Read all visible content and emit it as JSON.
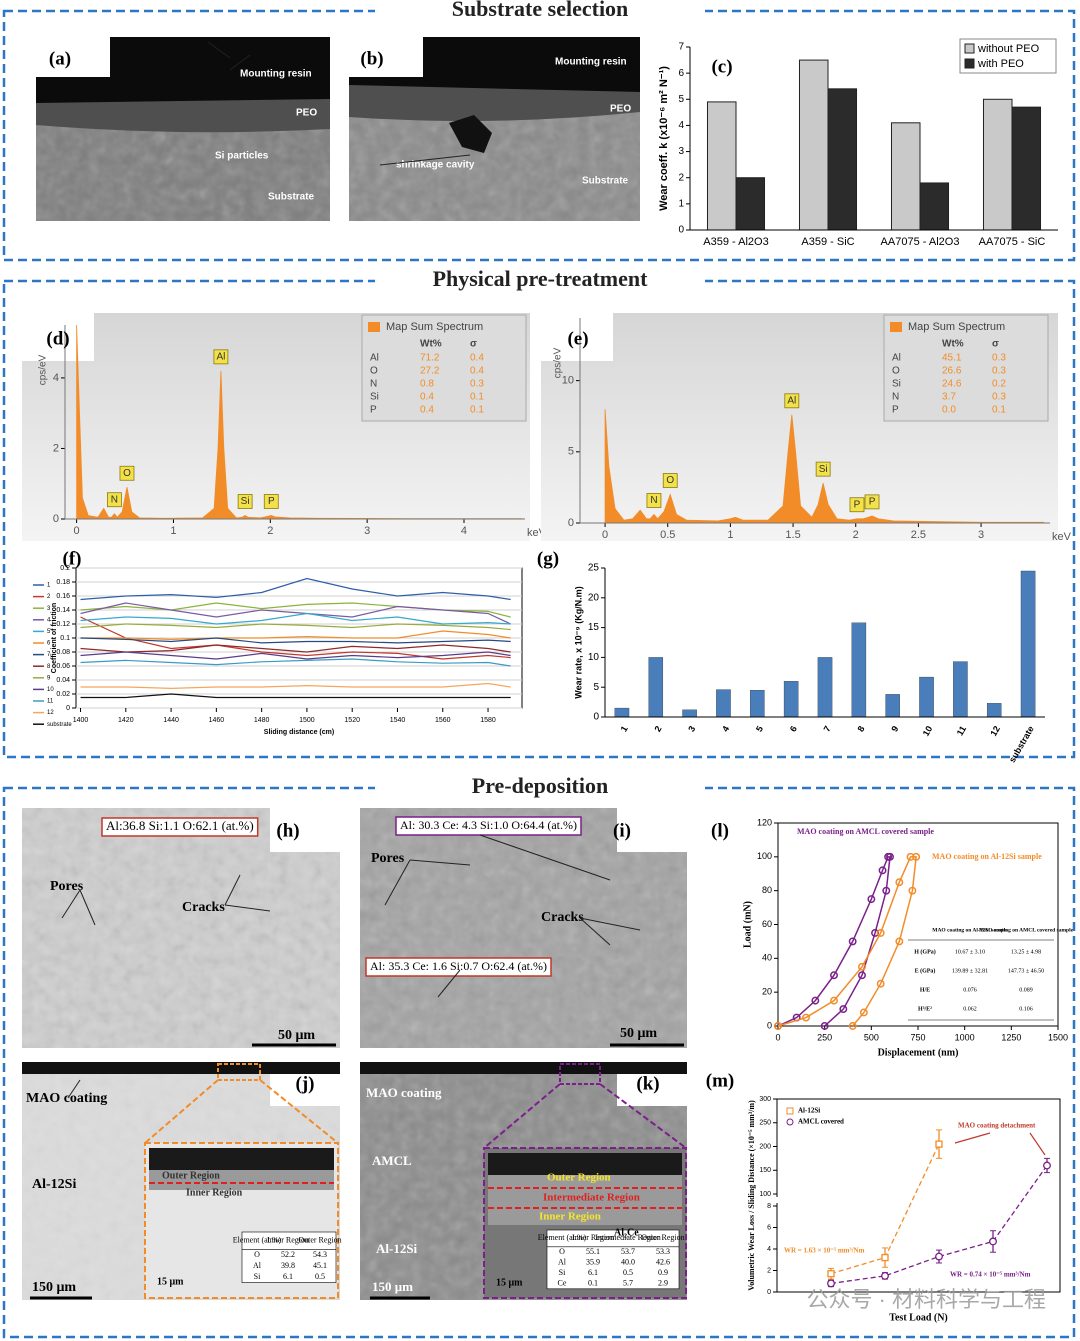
{
  "sections": [
    {
      "title": "Substrate selection"
    },
    {
      "title": "Physical pre-treatment"
    },
    {
      "title": "Pre-deposition"
    }
  ],
  "images": [
    {
      "label": "(a)",
      "annotations": [
        "Mounting resin",
        "PEO",
        "Si particles",
        "Substrate"
      ]
    },
    {
      "label": "(b)",
      "annotations": [
        "Mounting resin",
        "PEO",
        "shrinkage cavity",
        "Substrate"
      ]
    },
    {
      "label": "(h)",
      "annotations": [
        "Al:36.8 Si:1.1 O:62.1 (at.%)",
        "Pores",
        "Cracks",
        "50 μm"
      ]
    },
    {
      "label": "(i)",
      "annotations": [
        "Al: 30.3 Ce: 4.3 Si:1.0 O:64.4 (at.%)",
        "Pores",
        "Cracks",
        "Al: 35.3 Ce: 1.6 Si:0.7 O:62.4 (at.%)",
        "50 μm"
      ]
    },
    {
      "label": "(j)",
      "annotations": [
        "MAO coating",
        "Al-12Si",
        "150 μm",
        "Outer Region",
        "Inner Region",
        "15 μm"
      ],
      "table": {
        "header": [
          "Element (at.%)",
          "Inner Region",
          "Outer Region"
        ],
        "rows": [
          [
            "O",
            "52.2",
            "54.3"
          ],
          [
            "Al",
            "39.8",
            "45.1"
          ],
          [
            "Si",
            "6.1",
            "0.5"
          ]
        ]
      }
    },
    {
      "label": "(k)",
      "annotations": [
        "MAO coating",
        "AMCL",
        "Al-12Si",
        "150 μm",
        "Outer Region",
        "Intermediate Region",
        "Inner Region",
        "Al₂Ce",
        "15 μm"
      ],
      "table": {
        "header": [
          "Element (at.%)",
          "Inner Region",
          "Intermediate Region",
          "Outer Region"
        ],
        "rows": [
          [
            "O",
            "55.1",
            "53.7",
            "53.3"
          ],
          [
            "Al",
            "35.9",
            "40.0",
            "42.6"
          ],
          [
            "Si",
            "6.1",
            "0.5",
            "0.9"
          ],
          [
            "Ce",
            "0.1",
            "5.7",
            "2.9"
          ]
        ]
      }
    }
  ],
  "chart_data": [
    {
      "type": "bar",
      "label": "(c)",
      "categories": [
        "A359 - Al2O3",
        "A359 - SiC",
        "AA7075 - Al2O3",
        "AA7075 - SiC"
      ],
      "series": [
        {
          "name": "without PEO",
          "color": "#c9c9c9",
          "values": [
            4.9,
            6.5,
            4.1,
            5.0
          ]
        },
        {
          "name": "with PEO",
          "color": "#2b2b2b",
          "values": [
            2.0,
            5.4,
            1.8,
            4.7
          ]
        }
      ],
      "y_label": "Wear coeff. k (x10⁻⁶ m² N⁻¹)",
      "ylim": [
        0,
        7
      ],
      "yticks": [
        0,
        1,
        2,
        3,
        4,
        5,
        6,
        7
      ],
      "legend": "upper right"
    },
    {
      "type": "area",
      "label": "(d)",
      "color": "#f28c28",
      "x": [
        0,
        0.03,
        0.06,
        0.12,
        0.22,
        0.28,
        0.33,
        0.36,
        0.39,
        0.42,
        0.47,
        0.52,
        0.57,
        0.65,
        0.9,
        1.3,
        1.42,
        1.46,
        1.49,
        1.52,
        1.56,
        1.65,
        1.71,
        1.74,
        1.77,
        1.9,
        1.98,
        2.01,
        2.05,
        2.2,
        2.5,
        3.5,
        4.6
      ],
      "values": [
        5.5,
        3,
        0.6,
        0.1,
        0.05,
        0.3,
        0.05,
        0.05,
        0.15,
        0.05,
        0.2,
        0.9,
        0.2,
        0.03,
        0.02,
        0.03,
        0.3,
        2,
        4.2,
        2,
        0.3,
        0.03,
        0.05,
        0.1,
        0.05,
        0.03,
        0.08,
        0.1,
        0.06,
        0.03,
        0.02,
        0.01,
        0.01
      ],
      "xlim": [
        -0.12,
        4.63
      ],
      "ylim": [
        0,
        5.5
      ],
      "xticks": [
        0,
        1,
        2,
        3,
        4
      ],
      "yticks": [
        0,
        2,
        4
      ],
      "x_label": "keV",
      "y_label": "cps/eV",
      "peaks": [
        {
          "label": "N",
          "x": 0.39
        },
        {
          "label": "O",
          "x": 0.52
        },
        {
          "label": "Al",
          "x": 1.49
        },
        {
          "label": "Si",
          "x": 1.74
        },
        {
          "label": "P",
          "x": 2.01
        }
      ],
      "legend": {
        "title": "Map Sum Spectrum",
        "columns": [
          "Wt%",
          "σ"
        ],
        "rows": [
          [
            "Al",
            "71.2",
            "0.4"
          ],
          [
            "O",
            "27.2",
            "0.4"
          ],
          [
            "N",
            "0.8",
            "0.3"
          ],
          [
            "Si",
            "0.4",
            "0.1"
          ],
          [
            "P",
            "0.4",
            "0.1"
          ]
        ]
      }
    },
    {
      "type": "area",
      "label": "(e)",
      "color": "#f28c28",
      "x": [
        0,
        0.03,
        0.08,
        0.15,
        0.22,
        0.28,
        0.33,
        0.36,
        0.39,
        0.42,
        0.47,
        0.52,
        0.57,
        0.65,
        0.9,
        1.0,
        1.04,
        1.1,
        1.3,
        1.42,
        1.46,
        1.49,
        1.52,
        1.56,
        1.65,
        1.7,
        1.74,
        1.78,
        1.85,
        1.95,
        2.01,
        2.06,
        2.1,
        2.13,
        2.18,
        2.3,
        2.6,
        3.0,
        3.5
      ],
      "values": [
        8,
        4,
        1,
        0.2,
        0.3,
        0.9,
        0.3,
        0.3,
        0.6,
        0.3,
        0.8,
        2.0,
        0.6,
        0.2,
        0.15,
        0.3,
        0.4,
        0.2,
        0.2,
        1.2,
        5,
        7.6,
        5,
        1.2,
        0.4,
        1.3,
        2.8,
        1.3,
        0.3,
        0.2,
        0.3,
        0.3,
        0.4,
        0.5,
        0.3,
        0.15,
        0.1,
        0.05,
        0.05
      ],
      "xlim": [
        -0.2,
        3.55
      ],
      "ylim": [
        0,
        14.4
      ],
      "xticks": [
        0,
        0.5,
        1,
        1.5,
        2,
        2.5,
        3
      ],
      "yticks": [
        0,
        5,
        10
      ],
      "x_label": "keV",
      "y_label": "cps/eV",
      "peaks": [
        {
          "label": "N",
          "x": 0.39
        },
        {
          "label": "O",
          "x": 0.52
        },
        {
          "label": "Al",
          "x": 1.49
        },
        {
          "label": "Si",
          "x": 1.74
        },
        {
          "label": "P",
          "x": 2.01
        },
        {
          "label": "P",
          "x": 2.13
        }
      ],
      "legend": {
        "title": "Map Sum Spectrum",
        "columns": [
          "Wt%",
          "σ"
        ],
        "rows": [
          [
            "Al",
            "45.1",
            "0.3"
          ],
          [
            "O",
            "26.6",
            "0.3"
          ],
          [
            "Si",
            "24.6",
            "0.2"
          ],
          [
            "N",
            "3.7",
            "0.3"
          ],
          [
            "P",
            "0.0",
            "0.1"
          ]
        ]
      }
    },
    {
      "type": "line",
      "label": "(f)",
      "x": [
        1400,
        1420,
        1440,
        1460,
        1480,
        1500,
        1520,
        1540,
        1560,
        1580,
        1590
      ],
      "series": [
        {
          "name": "1",
          "color": "#2e5fa8",
          "values": [
            0.155,
            0.16,
            0.162,
            0.158,
            0.165,
            0.185,
            0.17,
            0.16,
            0.165,
            0.16,
            0.155
          ]
        },
        {
          "name": "2",
          "color": "#c0392b",
          "values": [
            0.13,
            0.1,
            0.085,
            0.09,
            0.08,
            0.075,
            0.08,
            0.078,
            0.07,
            0.075,
            0.072
          ]
        },
        {
          "name": "3",
          "color": "#8ab43c",
          "values": [
            0.14,
            0.145,
            0.14,
            0.15,
            0.142,
            0.148,
            0.15,
            0.145,
            0.14,
            0.138,
            0.13
          ]
        },
        {
          "name": "4",
          "color": "#7a5aa6",
          "values": [
            0.135,
            0.15,
            0.14,
            0.13,
            0.14,
            0.135,
            0.13,
            0.145,
            0.14,
            0.135,
            0.12
          ]
        },
        {
          "name": "5",
          "color": "#35a9cf",
          "values": [
            0.125,
            0.13,
            0.128,
            0.12,
            0.125,
            0.135,
            0.125,
            0.13,
            0.12,
            0.122,
            0.12
          ]
        },
        {
          "name": "6",
          "color": "#f28c28",
          "values": [
            0.1,
            0.1,
            0.098,
            0.1,
            0.1,
            0.102,
            0.1,
            0.1,
            0.11,
            0.105,
            0.1
          ]
        },
        {
          "name": "7",
          "color": "#274a80",
          "values": [
            0.1,
            0.098,
            0.095,
            0.1,
            0.093,
            0.095,
            0.095,
            0.093,
            0.095,
            0.097,
            0.095
          ]
        },
        {
          "name": "8",
          "color": "#8e2a2a",
          "values": [
            0.085,
            0.08,
            0.082,
            0.09,
            0.085,
            0.08,
            0.088,
            0.085,
            0.09,
            0.085,
            0.08
          ]
        },
        {
          "name": "9",
          "color": "#9aab3e",
          "values": [
            0.115,
            0.12,
            0.118,
            0.115,
            0.12,
            0.118,
            0.115,
            0.12,
            0.118,
            0.115,
            0.112
          ]
        },
        {
          "name": "10",
          "color": "#5a3d8a",
          "values": [
            0.075,
            0.08,
            0.075,
            0.07,
            0.078,
            0.07,
            0.075,
            0.072,
            0.075,
            0.08,
            0.075
          ]
        },
        {
          "name": "11",
          "color": "#3a9cc4",
          "values": [
            0.065,
            0.068,
            0.065,
            0.062,
            0.066,
            0.068,
            0.07,
            0.066,
            0.064,
            0.065,
            0.06
          ]
        },
        {
          "name": "12",
          "color": "#f6a65a",
          "values": [
            0.03,
            0.03,
            0.028,
            0.03,
            0.03,
            0.032,
            0.03,
            0.03,
            0.03,
            0.035,
            0.03
          ]
        },
        {
          "name": "substrate",
          "color": "#111111",
          "values": [
            0.015,
            0.015,
            0.02,
            0.015,
            0.015,
            0.015,
            0.015,
            0.015,
            0.015,
            0.015,
            0.015
          ]
        }
      ],
      "xlim": [
        1398,
        1595
      ],
      "ylim": [
        0,
        0.2
      ],
      "xticks": [
        1400,
        1420,
        1440,
        1460,
        1480,
        1500,
        1520,
        1540,
        1560,
        1580
      ],
      "yticks": [
        0,
        0.02,
        0.04,
        0.06,
        0.08,
        0.1,
        0.12,
        0.14,
        0.16,
        0.18,
        0.2
      ],
      "x_label": "Sliding distance (cm)",
      "y_label": "Coefficient of friction",
      "grid": true,
      "legend": "left"
    },
    {
      "type": "bar",
      "label": "(g)",
      "categories": [
        "1",
        "2",
        "3",
        "4",
        "5",
        "6",
        "7",
        "8",
        "9",
        "10",
        "11",
        "12",
        "substrate"
      ],
      "values": [
        1.5,
        10,
        1.2,
        4.6,
        4.5,
        6,
        10,
        15.8,
        3.8,
        6.7,
        9.3,
        2.3,
        24.5
      ],
      "color": "#4a7ebb",
      "y_label": "Wear rate, x 10⁻⁹ (Kg/N.m)",
      "ylim": [
        0,
        25
      ],
      "yticks": [
        0,
        5,
        10,
        15,
        20,
        25
      ]
    },
    {
      "type": "line",
      "label": "(l)",
      "series": [
        {
          "name": "MAO coating on AMCL covered sample",
          "color": "#7b1f8a",
          "x": [
            0,
            100,
            200,
            300,
            400,
            500,
            560,
            590,
            600,
            580,
            520,
            450,
            350,
            250
          ],
          "values": [
            0,
            5,
            15,
            30,
            50,
            75,
            92,
            100,
            100,
            80,
            55,
            30,
            10,
            0
          ]
        },
        {
          "name": "MAO coating on Al-12Si sample",
          "color": "#f28c28",
          "x": [
            0,
            150,
            300,
            450,
            550,
            650,
            710,
            740,
            720,
            650,
            550,
            460,
            400
          ],
          "values": [
            0,
            5,
            15,
            35,
            55,
            85,
            100,
            100,
            80,
            50,
            25,
            8,
            0
          ]
        }
      ],
      "xlim": [
        0,
        1500
      ],
      "ylim": [
        0,
        120
      ],
      "xticks": [
        0,
        250,
        500,
        750,
        1000,
        1250,
        1500
      ],
      "yticks": [
        0,
        20,
        40,
        60,
        80,
        100,
        120
      ],
      "x_label": "Displacement (nm)",
      "y_label": "Load (mN)",
      "table": {
        "header": [
          "MAO coating on Al-12Si sample",
          "MAO coating on AMCL covered sample"
        ],
        "rows": [
          [
            "H (GPa)",
            "10.67 ± 3.10",
            "13.25 ± 4.98"
          ],
          [
            "E (GPa)",
            "139.89 ± 32.81",
            "147.73 ± 46.50"
          ],
          [
            "H/E",
            "0.076",
            "0.089"
          ],
          [
            "H³/E²",
            "0.062",
            "0.106"
          ]
        ]
      }
    },
    {
      "type": "errorbar",
      "label": "(m)",
      "categories": [
        null,
        null,
        null,
        null,
        null
      ],
      "series": [
        {
          "name": "Al-12Si",
          "color": "#f28c28",
          "values": [
            1.7,
            3.2,
            205,
            null,
            null
          ],
          "errors": [
            0.5,
            0.9,
            30,
            null,
            null
          ]
        },
        {
          "name": "AMCL covered",
          "color": "#7b1f8a",
          "values": [
            0.8,
            1.5,
            3.3,
            4.7,
            160
          ],
          "errors": [
            0.3,
            0.3,
            0.6,
            1.0,
            15
          ]
        }
      ],
      "ylim": [
        0,
        300
      ],
      "ybreak": [
        8,
        100
      ],
      "yticks": [
        0,
        2,
        4,
        6,
        8,
        100,
        150,
        200,
        250,
        300
      ],
      "x_label": "Test Load (N)",
      "y_label": "Volumetric Wear Loss / Sliding Distance (×10⁻⁵ mm³/m)",
      "legend": "upper left",
      "annotations": [
        "WR = 1.63 × 10⁻⁵ mm³/Nm",
        "WR = 0.74 × 10⁻⁵ mm³/Nm",
        "MAO coating detachment"
      ]
    }
  ],
  "watermark": "公众号 · 材料科学与工程"
}
